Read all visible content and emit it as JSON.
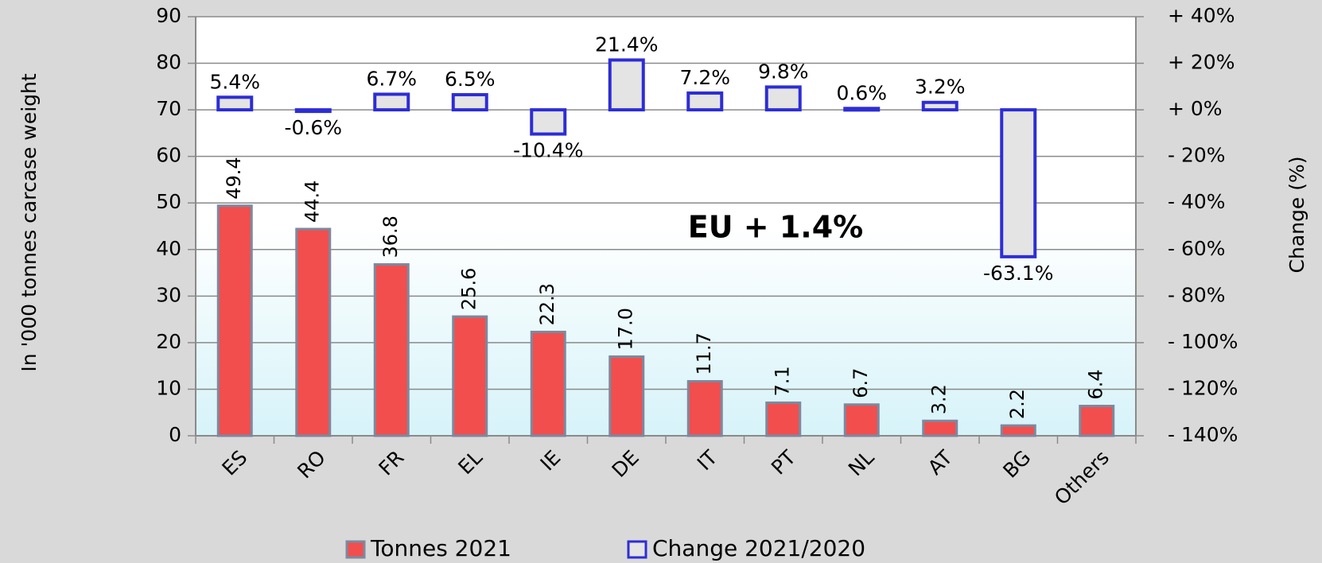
{
  "chart_data": {
    "type": "bar",
    "categories": [
      "ES",
      "RO",
      "FR",
      "EL",
      "IE",
      "DE",
      "IT",
      "PT",
      "NL",
      "AT",
      "BG",
      "Others"
    ],
    "series": [
      {
        "name": "Tonnes 2021",
        "color": "#f24e4e",
        "axis": "y",
        "values": [
          49.4,
          44.4,
          36.8,
          25.6,
          22.3,
          17.0,
          11.7,
          7.1,
          6.7,
          3.2,
          2.2,
          6.4
        ],
        "value_labels": [
          "49.4",
          "44.4",
          "36.8",
          "25.6",
          "22.3",
          "17.0",
          "11.7",
          "7.1",
          "6.7",
          "3.2",
          "2.2",
          "6.4"
        ]
      },
      {
        "name": "Change 2021/2020",
        "color": "#e4e4e4",
        "axis": "y2",
        "values": [
          5.4,
          -0.6,
          6.7,
          6.5,
          -10.4,
          21.4,
          7.2,
          9.8,
          0.6,
          3.2,
          -63.1,
          null
        ],
        "value_labels": [
          "5.4%",
          "-0.6%",
          "6.7%",
          "6.5%",
          "-10.4%",
          "21.4%",
          "7.2%",
          "9.8%",
          "0.6%",
          "3.2%",
          "-63.1%",
          null
        ]
      }
    ],
    "ylabel": "In '000 tonnes carcase  weight",
    "y2label": "Change (%)",
    "annotation": "EU  + 1.4%",
    "ylim": [
      0,
      90
    ],
    "yticks": [
      0,
      10,
      20,
      30,
      40,
      50,
      60,
      70,
      80,
      90
    ],
    "y2lim": [
      -140,
      40
    ],
    "y2ticks": [
      {
        "value": -140,
        "label": "- 140%"
      },
      {
        "value": -120,
        "label": "- 120%"
      },
      {
        "value": -100,
        "label": "- 100%"
      },
      {
        "value": -80,
        "label": "- 80%"
      },
      {
        "value": -60,
        "label": "- 60%"
      },
      {
        "value": -40,
        "label": "- 40%"
      },
      {
        "value": -20,
        "label": "- 20%"
      },
      {
        "value": 0,
        "label": "+ 0%"
      },
      {
        "value": 20,
        "label": "+ 20%"
      },
      {
        "value": 40,
        "label": "+ 40%"
      }
    ],
    "grid": true,
    "legend": "bottom"
  }
}
